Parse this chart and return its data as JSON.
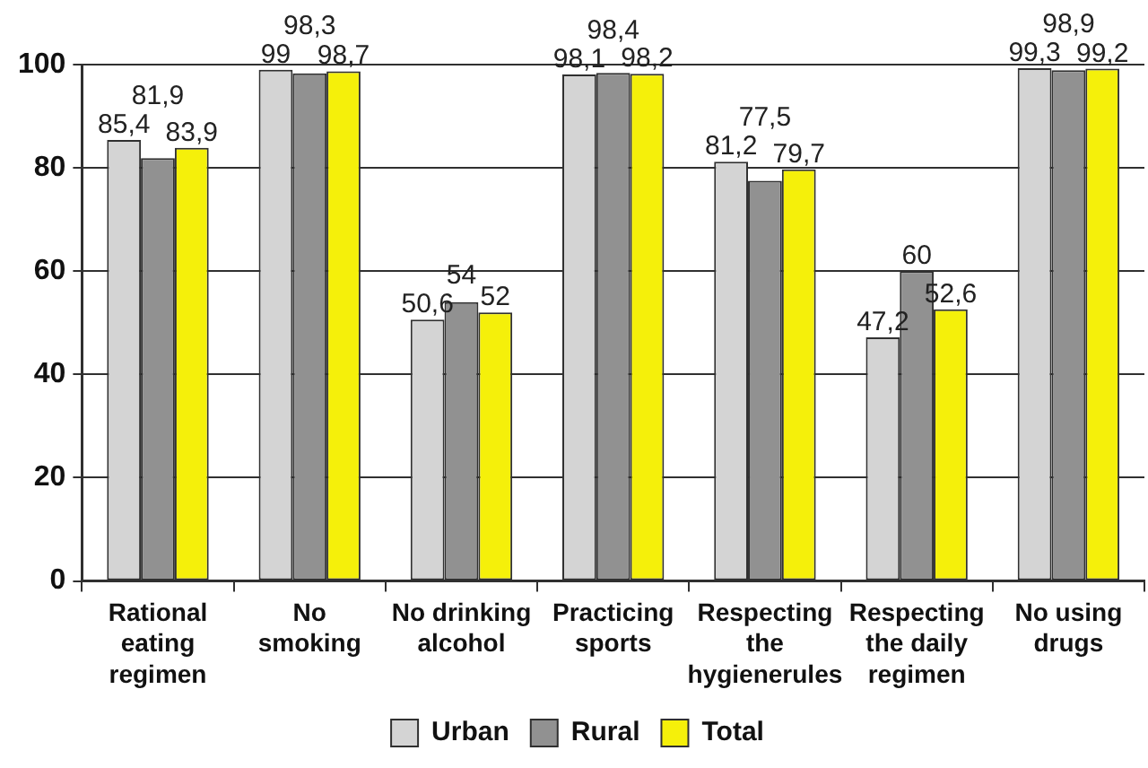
{
  "chart_data": {
    "type": "bar",
    "categories": [
      "Rational eating regimen",
      "No smoking",
      "No drinking alcohol",
      "Practicing sports",
      "Respecting the hygienerules",
      "Respecting the daily regimen",
      "No using drugs"
    ],
    "series": [
      {
        "name": "Urban",
        "color": "#d4d4d4",
        "values": [
          85.4,
          99,
          50.6,
          98.1,
          81.2,
          47.2,
          99.3
        ],
        "value_labels": [
          "85,4",
          "99",
          "50,6",
          "98,1",
          "81,2",
          "47,2",
          "99,3"
        ]
      },
      {
        "name": "Rural",
        "color": "#919191",
        "values": [
          81.9,
          98.3,
          54,
          98.4,
          77.5,
          60,
          98.9
        ],
        "value_labels": [
          "81,9",
          "98,3",
          "54",
          "98,4",
          "77,5",
          "60",
          "98,9"
        ]
      },
      {
        "name": "Total",
        "color": "#f5f00a",
        "values": [
          83.9,
          98.7,
          52,
          98.2,
          79.7,
          52.6,
          99.2
        ],
        "value_labels": [
          "83,9",
          "98,7",
          "52",
          "98,2",
          "79,7",
          "52,6",
          "99,2"
        ]
      }
    ],
    "ylim": [
      0,
      100
    ],
    "yticks": [
      0,
      20,
      40,
      60,
      80,
      100
    ],
    "grid": "y",
    "legend": "bottom"
  }
}
